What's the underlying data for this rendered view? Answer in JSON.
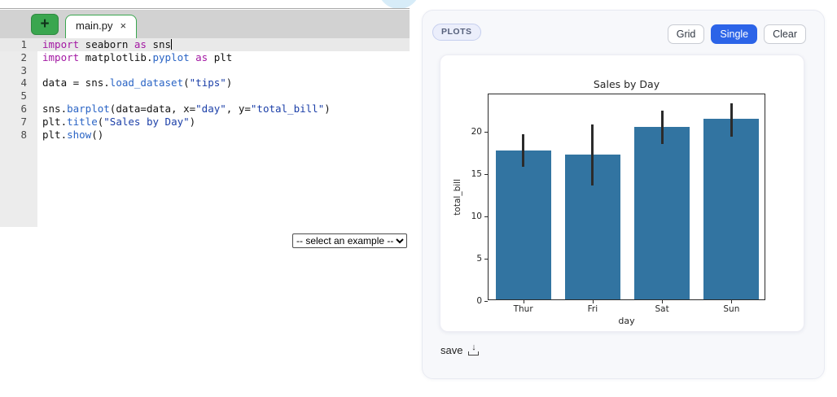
{
  "editor": {
    "new_tab_label": "+",
    "tab": {
      "name": "main.py",
      "close": "×"
    },
    "lines": [
      {
        "num": 1,
        "active": true,
        "caret": true,
        "tokens": [
          {
            "t": "kw",
            "v": "import"
          },
          {
            "t": "pl",
            "v": " seaborn "
          },
          {
            "t": "kw",
            "v": "as"
          },
          {
            "t": "pl",
            "v": " sns"
          }
        ]
      },
      {
        "num": 2,
        "tokens": [
          {
            "t": "kw",
            "v": "import"
          },
          {
            "t": "pl",
            "v": " matplotlib."
          },
          {
            "t": "fn",
            "v": "pyplot"
          },
          {
            "t": "pl",
            "v": " "
          },
          {
            "t": "kw",
            "v": "as"
          },
          {
            "t": "pl",
            "v": " plt"
          }
        ]
      },
      {
        "num": 3,
        "tokens": []
      },
      {
        "num": 4,
        "tokens": [
          {
            "t": "pl",
            "v": "data = sns."
          },
          {
            "t": "fn",
            "v": "load_dataset"
          },
          {
            "t": "pl",
            "v": "("
          },
          {
            "t": "str",
            "v": "\"tips\""
          },
          {
            "t": "pl",
            "v": ")"
          }
        ]
      },
      {
        "num": 5,
        "tokens": []
      },
      {
        "num": 6,
        "tokens": [
          {
            "t": "pl",
            "v": "sns."
          },
          {
            "t": "fn",
            "v": "barplot"
          },
          {
            "t": "pl",
            "v": "(data=data, x="
          },
          {
            "t": "str",
            "v": "\"day\""
          },
          {
            "t": "pl",
            "v": ", y="
          },
          {
            "t": "str",
            "v": "\"total_bill\""
          },
          {
            "t": "pl",
            "v": ")"
          }
        ]
      },
      {
        "num": 7,
        "tokens": [
          {
            "t": "pl",
            "v": "plt."
          },
          {
            "t": "fn",
            "v": "title"
          },
          {
            "t": "pl",
            "v": "("
          },
          {
            "t": "str",
            "v": "\"Sales by Day\""
          },
          {
            "t": "pl",
            "v": ")"
          }
        ]
      },
      {
        "num": 8,
        "tokens": [
          {
            "t": "pl",
            "v": "plt."
          },
          {
            "t": "fn",
            "v": "show"
          },
          {
            "t": "pl",
            "v": "()"
          }
        ]
      }
    ]
  },
  "example_select": {
    "value": "-- select an example --"
  },
  "plots_panel": {
    "badge": "PLOTS",
    "grid_label": "Grid",
    "single_label": "Single",
    "clear_label": "Clear",
    "save_label": "save",
    "save_icon": "download-icon"
  },
  "chart_data": {
    "type": "bar",
    "title": "Sales by Day",
    "xlabel": "day",
    "ylabel": "total_bill",
    "categories": [
      "Thur",
      "Fri",
      "Sat",
      "Sun"
    ],
    "values": [
      17.68,
      17.15,
      20.44,
      21.41
    ],
    "error_low": [
      15.95,
      13.65,
      18.66,
      19.5
    ],
    "error_high": [
      19.8,
      20.95,
      22.55,
      23.45
    ],
    "yticks": [
      0,
      5,
      10,
      15,
      20
    ],
    "ylim": [
      0,
      24.5
    ],
    "bar_color": "#3274a1",
    "error_color": "#2b2b2b",
    "grid": false,
    "legend": "none"
  },
  "colors": {
    "accent_blue": "#2c64e8",
    "tab_green": "#3aa64f",
    "keyword": "#a318a3",
    "function": "#2a64c5",
    "string": "#1b3fa8"
  }
}
